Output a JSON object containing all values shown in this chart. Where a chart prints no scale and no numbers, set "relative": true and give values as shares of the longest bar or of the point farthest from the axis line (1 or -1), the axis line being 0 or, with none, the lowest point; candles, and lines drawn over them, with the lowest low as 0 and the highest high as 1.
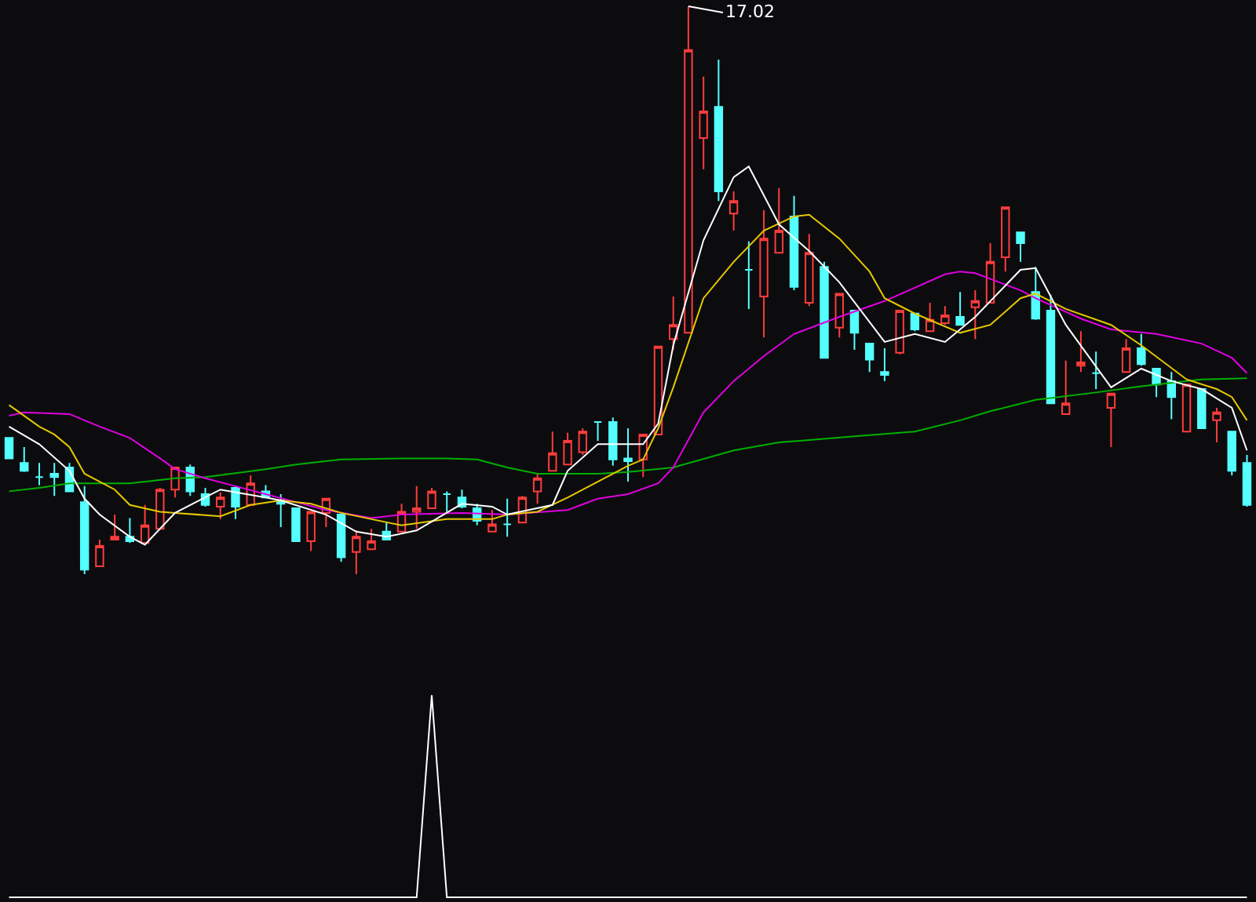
{
  "chart_data": [
    {
      "type": "candlestick",
      "relative": true,
      "categories": [
        null,
        null,
        null,
        null,
        null,
        null,
        null,
        null,
        null,
        null,
        null,
        null,
        null,
        null,
        null,
        null,
        null,
        null,
        null,
        null,
        null,
        null,
        null,
        null,
        null,
        null,
        null,
        null,
        null,
        null,
        null,
        null,
        null,
        null,
        null,
        null,
        null,
        null,
        null,
        null,
        null,
        null,
        null,
        null,
        null,
        null,
        null,
        null,
        null,
        null,
        null,
        null,
        null,
        null,
        null,
        null,
        null,
        null,
        null,
        null,
        null,
        null,
        null,
        null,
        null,
        null,
        null,
        null,
        null,
        null,
        null,
        null,
        null,
        null,
        null,
        null,
        null,
        null,
        null,
        null,
        null,
        null,
        null
      ],
      "ohlc": [
        [
          0.24,
          0.24,
          0.204,
          0.204
        ],
        [
          0.196,
          0.224,
          0.18,
          0.182
        ],
        [
          0.171,
          0.196,
          0.157,
          0.171
        ],
        [
          0.177,
          0.196,
          0.138,
          0.171
        ],
        [
          0.188,
          0.196,
          0.146,
          0.146
        ],
        [
          0.127,
          0.155,
          0,
          0.008
        ],
        [
          0.014,
          0.061,
          0.014,
          0.05
        ],
        [
          0.061,
          0.105,
          0.061,
          0.066
        ],
        [
          0.066,
          0.099,
          0.055,
          0.058
        ],
        [
          0.055,
          0.122,
          0.055,
          0.086
        ],
        [
          0.08,
          0.152,
          0.08,
          0.149
        ],
        [
          0.149,
          0.188,
          0.135,
          0.188
        ],
        [
          0.188,
          0.193,
          0.138,
          0.146
        ],
        [
          0.141,
          0.152,
          0.119,
          0.122
        ],
        [
          0.119,
          0.144,
          0.097,
          0.135
        ],
        [
          0.152,
          0.155,
          0.097,
          0.119
        ],
        [
          0.122,
          0.174,
          0.122,
          0.16
        ],
        [
          0.146,
          0.157,
          0.135,
          0.135
        ],
        [
          0.13,
          0.141,
          0.083,
          0.124
        ],
        [
          0.116,
          0.116,
          0.058,
          0.058
        ],
        [
          0.058,
          0.11,
          0.041,
          0.11
        ],
        [
          0.108,
          0.133,
          0.083,
          0.133
        ],
        [
          0.105,
          0.105,
          0.022,
          0.03
        ],
        [
          0.039,
          0.077,
          0,
          0.066
        ],
        [
          0.044,
          0.08,
          0.044,
          0.058
        ],
        [
          0.075,
          0.091,
          0.061,
          0.061
        ],
        [
          0.075,
          0.124,
          0.075,
          0.11
        ],
        [
          0.11,
          0.155,
          0.08,
          0.116
        ],
        [
          0.116,
          0.152,
          0.116,
          0.146
        ],
        [
          0.141,
          0.146,
          0.11,
          0.141
        ],
        [
          0.135,
          0.149,
          0.116,
          0.119
        ],
        [
          0.116,
          0.124,
          0.086,
          0.094
        ],
        [
          0.075,
          0.113,
          0.075,
          0.088
        ],
        [
          0.088,
          0.133,
          0.066,
          0.088
        ],
        [
          0.091,
          0.138,
          0.091,
          0.135
        ],
        [
          0.146,
          0.177,
          0.124,
          0.169
        ],
        [
          0.182,
          0.251,
          0.182,
          0.213
        ],
        [
          0.193,
          0.249,
          0.193,
          0.235
        ],
        [
          0.215,
          0.257,
          0.21,
          0.251
        ],
        [
          0.268,
          0.268,
          0.235,
          0.268
        ],
        [
          0.268,
          0.276,
          0.191,
          0.202
        ],
        [
          0.204,
          0.257,
          0.163,
          0.199
        ],
        [
          0.202,
          0.246,
          0.171,
          0.246
        ],
        [
          0.246,
          0.401,
          0.246,
          0.401
        ],
        [
          0.414,
          0.489,
          0.395,
          0.439
        ],
        [
          0.425,
          1,
          0.425,
          0.923
        ],
        [
          0.768,
          0.876,
          0.713,
          0.815
        ],
        [
          0.823,
          0.906,
          0.657,
          0.674
        ],
        [
          0.635,
          0.674,
          0.605,
          0.657
        ],
        [
          0.536,
          0.586,
          0.467,
          0.536
        ],
        [
          0.489,
          0.641,
          0.417,
          0.591
        ],
        [
          0.566,
          0.68,
          0.566,
          0.605
        ],
        [
          0.63,
          0.666,
          0.5,
          0.506
        ],
        [
          0.478,
          0.599,
          0.472,
          0.566
        ],
        [
          0.541,
          0.55,
          0.381,
          0.381
        ],
        [
          0.434,
          0.494,
          0.417,
          0.494
        ],
        [
          0.464,
          0.464,
          0.395,
          0.425
        ],
        [
          0.406,
          0.406,
          0.356,
          0.378
        ],
        [
          0.356,
          0.398,
          0.34,
          0.351
        ],
        [
          0.39,
          0.464,
          0.387,
          0.464
        ],
        [
          0.459,
          0.459,
          0.428,
          0.431
        ],
        [
          0.428,
          0.478,
          0.428,
          0.448
        ],
        [
          0.442,
          0.472,
          0.439,
          0.456
        ],
        [
          0.453,
          0.497,
          0.439,
          0.439
        ],
        [
          0.47,
          0.5,
          0.414,
          0.481
        ],
        [
          0.478,
          0.583,
          0.478,
          0.55
        ],
        [
          0.558,
          0.646,
          0.533,
          0.646
        ],
        [
          0.602,
          0.602,
          0.55,
          0.583
        ],
        [
          0.497,
          0.541,
          0.448,
          0.45
        ],
        [
          0.464,
          0.492,
          0.301,
          0.301
        ],
        [
          0.282,
          0.376,
          0.282,
          0.301
        ],
        [
          0.367,
          0.428,
          0.356,
          0.373
        ],
        [
          0.354,
          0.392,
          0.326,
          0.354
        ],
        [
          0.293,
          0.318,
          0.224,
          0.318
        ],
        [
          0.356,
          0.414,
          0.356,
          0.398
        ],
        [
          0.398,
          0.423,
          0.367,
          0.37
        ],
        [
          0.362,
          0.362,
          0.312,
          0.334
        ],
        [
          0.34,
          0.356,
          0.273,
          0.312
        ],
        [
          0.251,
          0.334,
          0.251,
          0.334
        ],
        [
          0.326,
          0.326,
          0.257,
          0.257
        ],
        [
          0.271,
          0.293,
          0.232,
          0.285
        ],
        [
          0.251,
          0.251,
          0.174,
          0.182
        ],
        [
          0.196,
          0.21,
          0.119,
          0.122
        ]
      ],
      "colors": [
        "#54ffff",
        "#54ffff",
        "#54ffff",
        "#54ffff",
        "#54ffff",
        "#54ffff",
        "#ff3c3c",
        "#ff3c3c",
        "#54ffff",
        "#ff3c3c",
        "#ff3c3c",
        "#ff3c3c",
        "#54ffff",
        "#54ffff",
        "#ff3c3c",
        "#54ffff",
        "#ff3c3c",
        "#54ffff",
        "#54ffff",
        "#54ffff",
        "#ff3c3c",
        "#ff3c3c",
        "#54ffff",
        "#ff3c3c",
        "#ff3c3c",
        "#54ffff",
        "#ff3c3c",
        "#ff3c3c",
        "#ff3c3c",
        "#54ffff",
        "#54ffff",
        "#54ffff",
        "#ff3c3c",
        "#54ffff",
        "#ff3c3c",
        "#ff3c3c",
        "#ff3c3c",
        "#ff3c3c",
        "#ff3c3c",
        "#54ffff",
        "#54ffff",
        "#54ffff",
        "#ff3c3c",
        "#ff3c3c",
        "#ff3c3c",
        "#ff3c3c",
        "#ff3c3c",
        "#54ffff",
        "#ff3c3c",
        "#54ffff",
        "#ff3c3c",
        "#ff3c3c",
        "#54ffff",
        "#ff3c3c",
        "#54ffff",
        "#ff3c3c",
        "#54ffff",
        "#54ffff",
        "#54ffff",
        "#ff3c3c",
        "#54ffff",
        "#ff3c3c",
        "#ff3c3c",
        "#54ffff",
        "#ff3c3c",
        "#ff3c3c",
        "#ff3c3c",
        "#54ffff",
        "#54ffff",
        "#54ffff",
        "#ff3c3c",
        "#ff3c3c",
        "#54ffff",
        "#ff3c3c",
        "#ff3c3c",
        "#54ffff",
        "#54ffff",
        "#54ffff",
        "#ff3c3c",
        "#54ffff",
        "#ff3c3c",
        "#54ffff",
        "#54ffff"
      ],
      "series": [
        {
          "type": "line",
          "color": "#00b000",
          "values": [
            0.146,
            null,
            0.152,
            null,
            0.16,
            null,
            null,
            null,
            0.16,
            null,
            null,
            0.169,
            null,
            0.171,
            null,
            null,
            null,
            0.185,
            null,
            0.193,
            null,
            null,
            0.202,
            null,
            null,
            null,
            0.204,
            null,
            null,
            0.204,
            null,
            0.202,
            null,
            0.188,
            null,
            0.177,
            null,
            null,
            null,
            0.177,
            null,
            0.18,
            null,
            null,
            0.188,
            null,
            null,
            null,
            0.218,
            null,
            null,
            0.232,
            null,
            null,
            null,
            null,
            0.243,
            null,
            null,
            null,
            0.251,
            null,
            null,
            0.271,
            null,
            0.287,
            null,
            null,
            0.307,
            null,
            null,
            null,
            0.32,
            null,
            null,
            0.331,
            null,
            null,
            null,
            0.343,
            null,
            null,
            0.345
          ]
        },
        {
          "type": "line",
          "color": "#e000e0",
          "values": [
            0.279,
            0.285,
            null,
            null,
            0.282,
            null,
            0.26,
            null,
            0.24,
            null,
            0.204,
            0.185,
            null,
            0.169,
            null,
            0.155,
            null,
            0.141,
            null,
            0.127,
            null,
            0.113,
            null,
            null,
            0.099,
            null,
            0.105,
            null,
            null,
            null,
            0.108,
            null,
            null,
            0.105,
            null,
            null,
            null,
            0.113,
            null,
            0.133,
            null,
            0.141,
            null,
            0.16,
            0.188,
            null,
            0.285,
            null,
            0.34,
            null,
            0.384,
            null,
            0.423,
            null,
            null,
            0.453,
            null,
            null,
            0.481,
            null,
            null,
            null,
            0.528,
            0.533,
            0.53,
            null,
            null,
            0.5,
            0.486,
            null,
            null,
            0.45,
            null,
            0.431,
            null,
            null,
            0.423,
            null,
            null,
            0.406,
            null,
            0.381,
            0.354
          ]
        },
        {
          "type": "line",
          "color": "#e6c800",
          "values": [
            0.298,
            null,
            0.26,
            0.246,
            0.224,
            0.177,
            null,
            0.149,
            0.122,
            null,
            0.11,
            0.108,
            null,
            null,
            0.102,
            null,
            0.122,
            null,
            0.13,
            null,
            0.124,
            null,
            0.108,
            null,
            0.097,
            null,
            0.086,
            null,
            null,
            0.097,
            null,
            null,
            0.097,
            0.105,
            null,
            0.11,
            null,
            0.135,
            null,
            0.163,
            null,
            0.191,
            0.202,
            0.257,
            0.329,
            null,
            0.486,
            null,
            0.55,
            null,
            0.605,
            null,
            0.63,
            0.633,
            null,
            0.591,
            null,
            0.533,
            0.486,
            null,
            0.459,
            null,
            null,
            0.425,
            null,
            0.439,
            null,
            0.486,
            0.494,
            null,
            0.467,
            null,
            null,
            0.439,
            null,
            0.403,
            null,
            null,
            0.343,
            null,
            0.326,
            0.312,
            0.271
          ]
        },
        {
          "type": "line",
          "color": "#ffffff",
          "values": [
            0.26,
            null,
            0.229,
            null,
            0.182,
            0.133,
            0.105,
            null,
            0.066,
            0.052,
            null,
            0.108,
            null,
            null,
            0.149,
            null,
            null,
            0.135,
            0.13,
            null,
            null,
            0.105,
            null,
            0.075,
            null,
            0.066,
            null,
            0.077,
            null,
            null,
            0.124,
            null,
            0.119,
            0.105,
            null,
            null,
            0.122,
            0.182,
            null,
            0.229,
            null,
            null,
            0.229,
            0.265,
            0.403,
            null,
            0.588,
            null,
            0.699,
            0.718,
            null,
            0.616,
            null,
            0.569,
            null,
            0.514,
            null,
            null,
            0.409,
            null,
            0.423,
            null,
            0.409,
            null,
            0.453,
            null,
            null,
            0.536,
            0.539,
            null,
            0.439,
            null,
            null,
            0.329,
            null,
            0.362,
            null,
            0.34,
            null,
            0.326,
            null,
            0.293,
            0.218
          ]
        }
      ],
      "annotations": [
        "17.02"
      ]
    },
    {
      "type": "line",
      "relative": true,
      "color": "#ffffff",
      "categories": [
        null,
        null,
        null,
        null,
        null,
        null,
        null,
        null,
        null,
        null,
        null,
        null,
        null,
        null,
        null,
        null,
        null,
        null,
        null,
        null,
        null,
        null,
        null,
        null,
        null,
        null,
        null,
        null,
        null,
        null,
        null,
        null,
        null,
        null,
        null,
        null,
        null,
        null,
        null,
        null,
        null,
        null,
        null,
        null,
        null,
        null,
        null,
        null,
        null,
        null,
        null,
        null,
        null,
        null,
        null,
        null,
        null,
        null,
        null,
        null,
        null,
        null,
        null,
        null,
        null,
        null,
        null,
        null,
        null,
        null,
        null,
        null,
        null,
        null,
        null,
        null,
        null,
        null,
        null,
        null,
        null,
        null,
        null
      ],
      "values": [
        0,
        0,
        0,
        0,
        0,
        0,
        0,
        0,
        0,
        0,
        0,
        0,
        0,
        0,
        0,
        0,
        0,
        0,
        0,
        0,
        0,
        0,
        0,
        0,
        0,
        0,
        0,
        0,
        1,
        0,
        0,
        0,
        0,
        0,
        0,
        0,
        0,
        0,
        0,
        0,
        0,
        0,
        0,
        0,
        0,
        0,
        0,
        0,
        0,
        0,
        0,
        0,
        0,
        0,
        0,
        0,
        0,
        0,
        0,
        0,
        0,
        0,
        0,
        0,
        0,
        0,
        0,
        0,
        0,
        0,
        0,
        0,
        0,
        0,
        0,
        0,
        0,
        0,
        0,
        0,
        0,
        0,
        0
      ]
    }
  ]
}
